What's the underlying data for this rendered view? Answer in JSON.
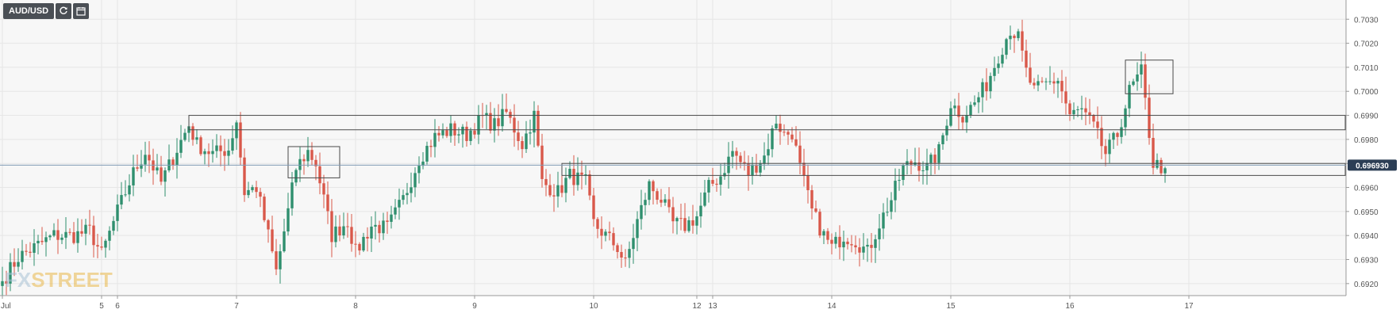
{
  "toolbar": {
    "symbol": "AUD/USD",
    "refresh_icon": "refresh-icon",
    "calendar_icon": "calendar-icon"
  },
  "watermark": {
    "text_a": "FX",
    "text_b": "STREET"
  },
  "colors": {
    "up": "#2f8f6e",
    "down": "#d9584a",
    "grid": "#e6e6e6",
    "plot_bg": "#f7f7f7",
    "price_line": "#7f9ab5",
    "price_badge": "#2c3e55",
    "level": "#4a4a4a"
  },
  "chart_data": {
    "type": "candlestick",
    "pair": "AUD/USD",
    "y_ticks": [
      "0.6920",
      "0.6930",
      "0.6940",
      "0.6950",
      "0.6960",
      "0.6970",
      "0.6980",
      "0.6990",
      "0.7000",
      "0.7010",
      "0.7020",
      "0.7030"
    ],
    "ylim": [
      0.6915,
      0.7038
    ],
    "x_ticks": [
      {
        "label": "Jul",
        "idx": 0
      },
      {
        "label": "5",
        "idx": 25
      },
      {
        "label": "6",
        "idx": 29
      },
      {
        "label": "7",
        "idx": 59
      },
      {
        "label": "8",
        "idx": 89
      },
      {
        "label": "9",
        "idx": 119
      },
      {
        "label": "10",
        "idx": 149
      },
      {
        "label": "12",
        "idx": 175
      },
      {
        "label": "13",
        "idx": 179
      },
      {
        "label": "14",
        "idx": 209
      },
      {
        "label": "15",
        "idx": 239
      },
      {
        "label": "16",
        "idx": 269
      },
      {
        "label": "17",
        "idx": 299
      }
    ],
    "current_price": "0.696930",
    "current_value": 0.69693,
    "levels": [
      {
        "from_idx": 47,
        "y1": 0.699,
        "y2": 0.6984
      },
      {
        "from_idx": 141,
        "y1": 0.697,
        "y2": 0.6965
      }
    ],
    "boxes": [
      {
        "idx1": 72,
        "idx2": 85,
        "y1": 0.6977,
        "y2": 0.6964
      },
      {
        "idx1": 283,
        "idx2": 295,
        "y1": 0.7013,
        "y2": 0.6999
      }
    ],
    "anchors": [
      [
        0,
        0.6921
      ],
      [
        4,
        0.6931
      ],
      [
        8,
        0.6935
      ],
      [
        13,
        0.694
      ],
      [
        18,
        0.694
      ],
      [
        22,
        0.6942
      ],
      [
        25,
        0.6932
      ],
      [
        29,
        0.695
      ],
      [
        33,
        0.6966
      ],
      [
        36,
        0.6975
      ],
      [
        40,
        0.6962
      ],
      [
        44,
        0.6976
      ],
      [
        47,
        0.6986
      ],
      [
        49,
        0.6978
      ],
      [
        53,
        0.6974
      ],
      [
        57,
        0.6976
      ],
      [
        59,
        0.6988
      ],
      [
        61,
        0.6958
      ],
      [
        64,
        0.696
      ],
      [
        67,
        0.694
      ],
      [
        69,
        0.6925
      ],
      [
        72,
        0.695
      ],
      [
        74,
        0.6968
      ],
      [
        77,
        0.6975
      ],
      [
        79,
        0.697
      ],
      [
        83,
        0.694
      ],
      [
        87,
        0.6946
      ],
      [
        89,
        0.6933
      ],
      [
        93,
        0.6944
      ],
      [
        97,
        0.6943
      ],
      [
        101,
        0.6955
      ],
      [
        105,
        0.6972
      ],
      [
        109,
        0.6981
      ],
      [
        113,
        0.6984
      ],
      [
        117,
        0.6982
      ],
      [
        121,
        0.6989
      ],
      [
        124,
        0.6986
      ],
      [
        127,
        0.6991
      ],
      [
        131,
        0.6978
      ],
      [
        134,
        0.699
      ],
      [
        136,
        0.6962
      ],
      [
        140,
        0.6958
      ],
      [
        143,
        0.6965
      ],
      [
        147,
        0.6962
      ],
      [
        149,
        0.6945
      ],
      [
        152,
        0.694
      ],
      [
        155,
        0.6935
      ],
      [
        157,
        0.6928
      ],
      [
        160,
        0.6946
      ],
      [
        163,
        0.6961
      ],
      [
        166,
        0.6955
      ],
      [
        169,
        0.6945
      ],
      [
        172,
        0.6944
      ],
      [
        175,
        0.6948
      ],
      [
        178,
        0.696
      ],
      [
        181,
        0.6965
      ],
      [
        184,
        0.6975
      ],
      [
        188,
        0.6966
      ],
      [
        192,
        0.6973
      ],
      [
        195,
        0.6988
      ],
      [
        197,
        0.6982
      ],
      [
        199,
        0.6983
      ],
      [
        201,
        0.6968
      ],
      [
        204,
        0.695
      ],
      [
        207,
        0.694
      ],
      [
        209,
        0.6935
      ],
      [
        212,
        0.694
      ],
      [
        215,
        0.6938
      ],
      [
        218,
        0.6933
      ],
      [
        221,
        0.6945
      ],
      [
        224,
        0.6955
      ],
      [
        227,
        0.6968
      ],
      [
        230,
        0.6971
      ],
      [
        233,
        0.6968
      ],
      [
        236,
        0.6975
      ],
      [
        239,
        0.6995
      ],
      [
        242,
        0.699
      ],
      [
        245,
        0.6995
      ],
      [
        248,
        0.7003
      ],
      [
        251,
        0.7015
      ],
      [
        254,
        0.7026
      ],
      [
        256,
        0.7022
      ],
      [
        258,
        0.7008
      ],
      [
        260,
        0.7
      ],
      [
        263,
        0.7003
      ],
      [
        266,
        0.7005
      ],
      [
        269,
        0.699
      ],
      [
        272,
        0.6992
      ],
      [
        275,
        0.6985
      ],
      [
        278,
        0.6974
      ],
      [
        281,
        0.6982
      ],
      [
        284,
        0.7
      ],
      [
        287,
        0.7008
      ],
      [
        290,
        0.697
      ],
      [
        293,
        0.6968
      ]
    ]
  }
}
